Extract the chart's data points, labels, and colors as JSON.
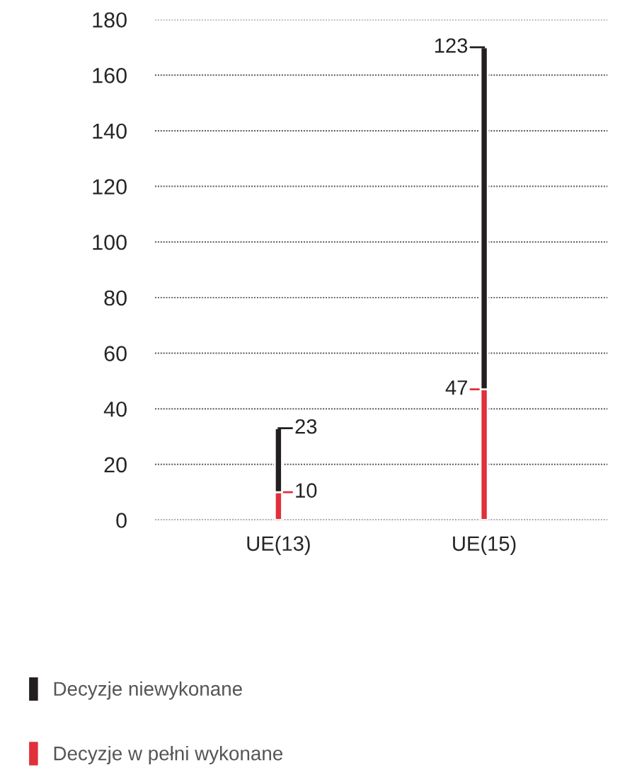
{
  "chart_data": {
    "type": "bar",
    "stacked": true,
    "categories": [
      "UE(13)",
      "UE(15)"
    ],
    "series": [
      {
        "name": "Decyzje w pełni wykonane",
        "color": "#e0303a",
        "values": [
          10,
          47
        ],
        "value_labels": [
          "10",
          "47"
        ]
      },
      {
        "name": "Decyzje niewykonane",
        "color": "#231f20",
        "values": [
          23,
          123
        ],
        "value_labels": [
          "23",
          "123"
        ]
      }
    ],
    "ylim": [
      0,
      180
    ],
    "yticks": [
      0,
      20,
      40,
      60,
      80,
      100,
      120,
      140,
      160,
      180
    ],
    "grid": "y",
    "legend": "bottom"
  }
}
